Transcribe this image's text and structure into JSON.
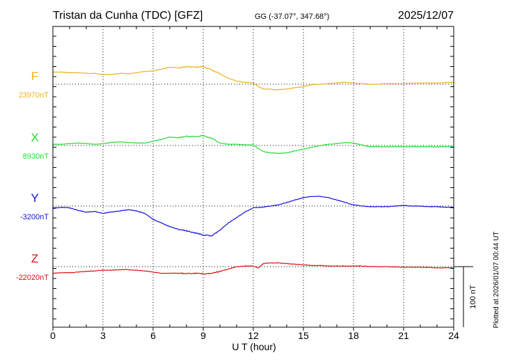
{
  "header": {
    "title": "Tristan da Cunha (TDC)  [GFZ]",
    "coords": "GG (-37.07°, 347.68°)",
    "date": "2025/12/07"
  },
  "footer": {
    "plotted_at": "Plotted at 2026/01/07 00:44 UT"
  },
  "chart_data": {
    "type": "line",
    "xlabel": "U T (hour)",
    "xlim": [
      0,
      24
    ],
    "xticks": [
      0,
      3,
      6,
      9,
      12,
      15,
      18,
      21,
      24
    ],
    "grid": true,
    "scale_bar": {
      "label": "100 nT",
      "nT": 100
    },
    "series": [
      {
        "name": "F",
        "baseline_label": "23970nT",
        "baseline_nT": 23970,
        "color": "#f0b020",
        "x": [
          0,
          0.5,
          1,
          1.5,
          2,
          2.5,
          3,
          3.5,
          4,
          4.5,
          5,
          5.5,
          6,
          6.5,
          7,
          7.5,
          8,
          8.5,
          9,
          9.5,
          10,
          10.5,
          11,
          11.5,
          12,
          12.3,
          12.6,
          13,
          13.5,
          14,
          14.5,
          15,
          15.5,
          16,
          16.5,
          17,
          17.5,
          18,
          18.5,
          19,
          19.5,
          20,
          21,
          22,
          23,
          24
        ],
        "values": [
          23990,
          23990,
          23989,
          23989,
          23988,
          23988,
          23986,
          23986,
          23988,
          23987,
          23989,
          23991,
          23992,
          23995,
          23998,
          23997,
          23999,
          23998,
          23999,
          23994,
          23987,
          23980,
          23975,
          23973,
          23972,
          23966,
          23962,
          23962,
          23961,
          23962,
          23964,
          23966,
          23969,
          23970,
          23971,
          23972,
          23973,
          23972,
          23971,
          23970,
          23970,
          23971,
          23971,
          23972,
          23972,
          23973
        ]
      },
      {
        "name": "X",
        "baseline_label": "8930nT",
        "baseline_nT": 8930,
        "color": "#22dd33",
        "x": [
          0,
          0.5,
          1,
          1.5,
          2,
          2.5,
          3,
          3.5,
          4,
          4.5,
          5,
          5.5,
          6,
          6.5,
          7,
          7.5,
          8,
          8.5,
          9,
          9.5,
          10,
          10.5,
          11,
          11.5,
          12,
          12.3,
          12.6,
          13,
          13.5,
          14,
          14.5,
          15,
          15.5,
          16,
          16.5,
          17,
          17.5,
          18,
          18.5,
          19,
          19.5,
          20,
          21,
          22,
          23,
          24
        ],
        "values": [
          8932,
          8932,
          8933,
          8934,
          8933,
          8932,
          8933,
          8935,
          8936,
          8935,
          8934,
          8934,
          8937,
          8940,
          8944,
          8943,
          8945,
          8945,
          8946,
          8942,
          8934,
          8932,
          8932,
          8931,
          8931,
          8925,
          8920,
          8918,
          8917,
          8918,
          8921,
          8924,
          8927,
          8930,
          8932,
          8933,
          8935,
          8934,
          8931,
          8928,
          8928,
          8928,
          8928,
          8928,
          8928,
          8928
        ]
      },
      {
        "name": "Y",
        "baseline_label": "-3200nT",
        "baseline_nT": -3200,
        "color": "#1010dd",
        "x": [
          0,
          0.5,
          1,
          1.5,
          2,
          2.5,
          3,
          3.5,
          4,
          4.5,
          5,
          5.5,
          6,
          6.5,
          7,
          7.5,
          8,
          8.5,
          9,
          9.5,
          10,
          10.5,
          11,
          11.5,
          12,
          12.5,
          13,
          13.5,
          14,
          14.5,
          15,
          15.5,
          16,
          16.5,
          17,
          17.5,
          18,
          18.5,
          19,
          19.5,
          20,
          20.5,
          21,
          21.5,
          22,
          22.5,
          23,
          23.5,
          24
        ],
        "values": [
          -3204,
          -3202,
          -3203,
          -3207,
          -3210,
          -3209,
          -3212,
          -3210,
          -3208,
          -3206,
          -3208,
          -3212,
          -3222,
          -3228,
          -3234,
          -3238,
          -3241,
          -3244,
          -3248,
          -3249,
          -3240,
          -3228,
          -3219,
          -3210,
          -3203,
          -3202,
          -3200,
          -3198,
          -3194,
          -3190,
          -3186,
          -3184,
          -3184,
          -3186,
          -3190,
          -3194,
          -3198,
          -3200,
          -3201,
          -3201,
          -3201,
          -3200,
          -3199,
          -3200,
          -3200,
          -3201,
          -3201,
          -3202,
          -3202
        ]
      },
      {
        "name": "Z",
        "baseline_label": "-22020nT",
        "baseline_nT": -22020,
        "color": "#dd1111",
        "x": [
          0,
          0.5,
          1,
          1.5,
          2,
          2.5,
          3,
          3.5,
          4,
          4.5,
          5,
          5.5,
          6,
          6.5,
          7,
          7.5,
          8,
          8.5,
          9,
          9.5,
          10,
          10.5,
          11,
          11.5,
          12,
          12.3,
          12.6,
          13,
          13.5,
          14,
          14.5,
          15,
          15.5,
          16,
          16.5,
          17,
          17.5,
          18,
          18.5,
          19,
          19.5,
          20,
          21,
          22,
          23,
          24
        ],
        "values": [
          -22031,
          -22030,
          -22030,
          -22029,
          -22028,
          -22027,
          -22026,
          -22026,
          -22025,
          -22025,
          -22026,
          -22027,
          -22029,
          -22031,
          -22031,
          -22031,
          -22031,
          -22031,
          -22032,
          -22031,
          -22028,
          -22024,
          -22020,
          -22019,
          -22019,
          -22022,
          -22015,
          -22014,
          -22014,
          -22015,
          -22016,
          -22017,
          -22018,
          -22018,
          -22019,
          -22019,
          -22019,
          -22019,
          -22019,
          -22020,
          -22020,
          -22020,
          -22021,
          -22021,
          -22022,
          -22022
        ]
      }
    ]
  }
}
